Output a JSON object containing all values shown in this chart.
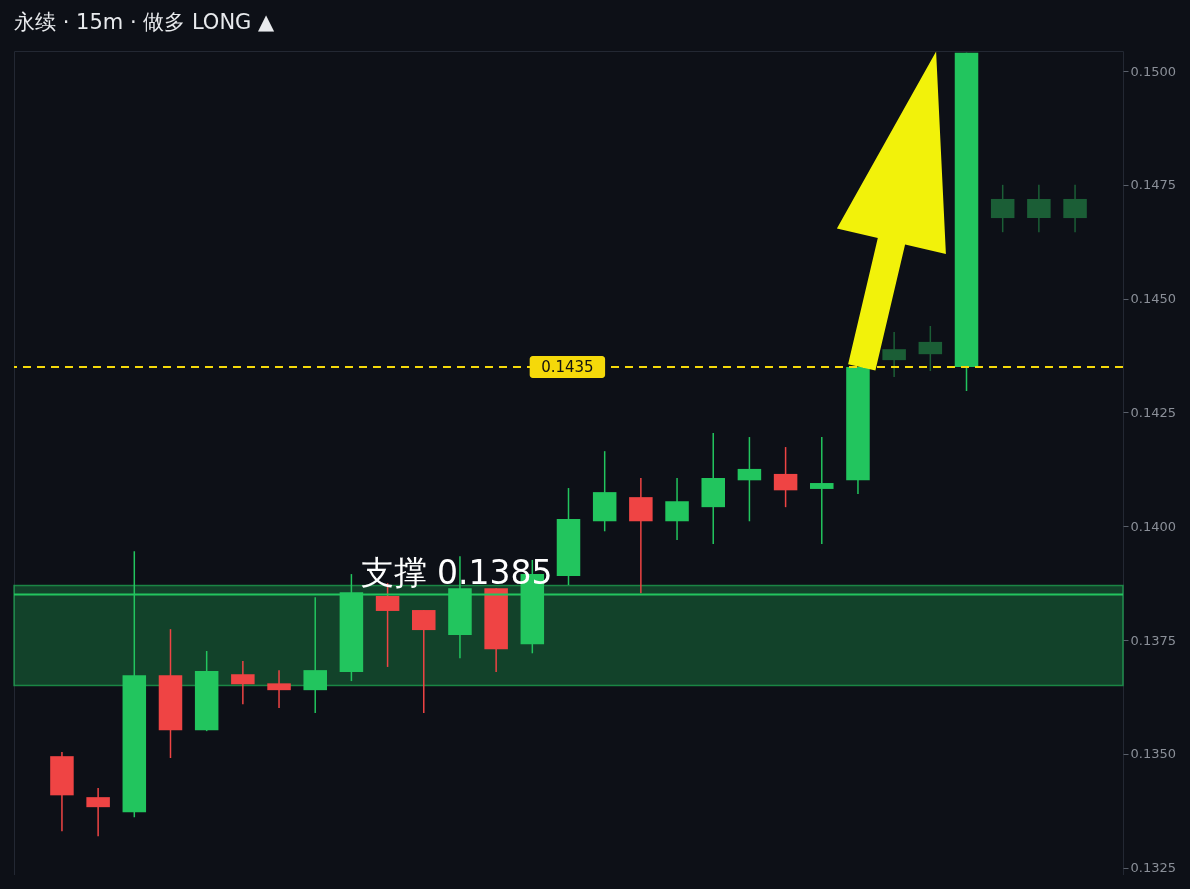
{
  "chart_data": {
    "type": "candlestick",
    "title": "永续 · 15m · 做多 LONG ▲",
    "categories": [
      null,
      null,
      null,
      null,
      null,
      null,
      null,
      null,
      null,
      null,
      null,
      null,
      null,
      null,
      null,
      null,
      null,
      null,
      null,
      null,
      null,
      null,
      null,
      null,
      null,
      null,
      null,
      null,
      null
    ],
    "ohlc": [
      [
        0.13495,
        0.13504,
        0.1333,
        0.13409
      ],
      [
        0.13405,
        0.13425,
        0.13319,
        0.13383
      ],
      [
        0.13372,
        0.13945,
        0.13361,
        0.13673
      ],
      [
        0.13673,
        0.13774,
        0.13491,
        0.13552
      ],
      [
        0.13552,
        0.13726,
        0.1355,
        0.13682
      ],
      [
        0.13675,
        0.13704,
        0.13609,
        0.13653
      ],
      [
        0.13655,
        0.13684,
        0.13601,
        0.1364
      ],
      [
        0.1364,
        0.13844,
        0.1359,
        0.13684
      ],
      [
        0.1368,
        0.13895,
        0.1366,
        0.13855
      ],
      [
        0.13847,
        0.13875,
        0.13691,
        0.13814
      ],
      [
        0.13816,
        0.13816,
        0.1359,
        0.13772
      ],
      [
        0.13761,
        0.13934,
        0.1371,
        0.13864
      ],
      [
        0.13864,
        0.13864,
        0.1368,
        0.1373
      ],
      [
        0.13741,
        0.13926,
        0.13721,
        0.13895
      ],
      [
        0.13891,
        0.14084,
        0.13871,
        0.14016
      ],
      [
        0.14011,
        0.14165,
        0.13989,
        0.14075
      ],
      [
        0.14064,
        0.14106,
        0.13853,
        0.14011
      ],
      [
        0.14011,
        0.14106,
        0.1397,
        0.14055
      ],
      [
        0.14042,
        0.14205,
        0.13961,
        0.14106
      ],
      [
        0.14101,
        0.14196,
        0.14011,
        0.14126
      ],
      [
        0.14115,
        0.14174,
        0.14042,
        0.14079
      ],
      [
        0.14082,
        0.14196,
        0.13961,
        0.14095
      ],
      [
        0.14101,
        0.1435,
        0.14071,
        0.1435
      ],
      [
        0.14365,
        0.14427,
        0.14328,
        0.14389
      ],
      [
        0.14378,
        0.1444,
        0.14341,
        0.14405
      ],
      [
        0.1435,
        0.1504,
        0.14297,
        0.1504
      ],
      [
        0.14677,
        0.1475,
        0.14646,
        0.14719
      ],
      [
        0.14677,
        0.1475,
        0.14646,
        0.14719
      ],
      [
        0.14677,
        0.1475,
        0.14646,
        0.14719
      ]
    ],
    "colors": [
      "#ef4444",
      "#ef4444",
      "#22c55e",
      "#ef4444",
      "#22c55e",
      "#ef4444",
      "#ef4444",
      "#22c55e",
      "#22c55e",
      "#ef4444",
      "#ef4444",
      "#22c55e",
      "#ef4444",
      "#22c55e",
      "#22c55e",
      "#22c55e",
      "#ef4444",
      "#22c55e",
      "#22c55e",
      "#22c55e",
      "#ef4444",
      "#22c55e",
      "#22c55e",
      "#1b5e36",
      "#1b5e36",
      "#22c55e",
      "#1b5e36",
      "#1b5e36",
      "#1b5e36"
    ],
    "ylim": [
      0.13234,
      0.15044
    ],
    "yticks": [
      {
        "value": 0.1325,
        "label": "0.1325"
      },
      {
        "value": 0.135,
        "label": "0.1350"
      },
      {
        "value": 0.1375,
        "label": "0.1375"
      },
      {
        "value": 0.14,
        "label": "0.1400"
      },
      {
        "value": 0.1425,
        "label": "0.1425"
      },
      {
        "value": 0.145,
        "label": "0.1450"
      },
      {
        "value": 0.1475,
        "label": "0.1475"
      },
      {
        "value": 0.15,
        "label": "0.1500"
      }
    ],
    "tick_labels": "y",
    "ref_lines": [
      {
        "axis": "y",
        "value": 0.1435,
        "label": "0.1435",
        "color": "#f5d90a",
        "line_style": "dashed"
      },
      {
        "axis": "y",
        "value": 0.1385,
        "label": "支撑 0.1385",
        "color": "#22c55e",
        "line_style": "solid"
      }
    ],
    "bands": [
      {
        "axis": "y",
        "from": 0.1365,
        "to": 0.1387,
        "color": "#22c55e"
      }
    ]
  }
}
